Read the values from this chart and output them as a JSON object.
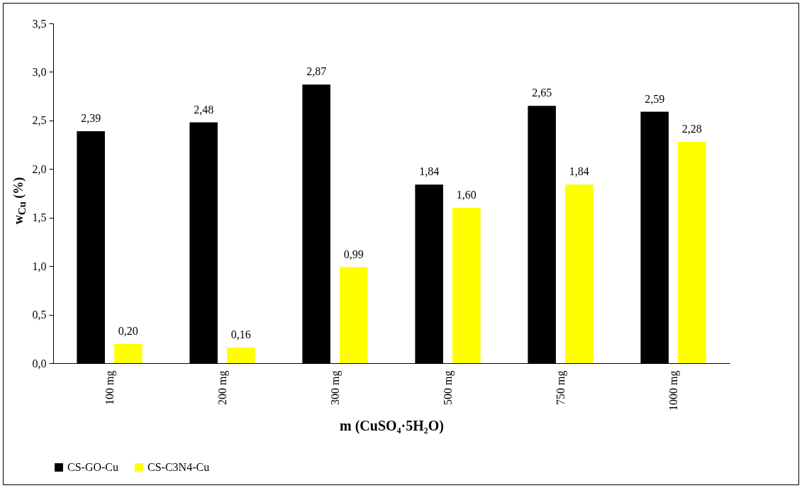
{
  "chart_data": {
    "type": "bar",
    "xlabel": "m (CuSO₄·5H₂O)",
    "ylabel": "w$_{Cu}$ (%)",
    "categories": [
      "100 mg",
      "200 mg",
      "300 mg",
      "500 mg",
      "750 mg",
      "1000 mg"
    ],
    "series": [
      {
        "name": "CS-GO-Cu",
        "color": "#000000",
        "values": [
          2.39,
          2.48,
          2.87,
          1.84,
          2.65,
          2.59
        ],
        "value_labels": [
          "2,39",
          "2,48",
          "2,87",
          "1,84",
          "2,65",
          "2,59"
        ]
      },
      {
        "name": "CS-C3N4-Cu",
        "color": "#ffff00",
        "values": [
          0.2,
          0.16,
          0.99,
          1.6,
          1.84,
          2.28
        ],
        "value_labels": [
          "0,20",
          "0,16",
          "0,99",
          "1,60",
          "1,84",
          "2,28"
        ]
      }
    ],
    "ylim": [
      0,
      3.5
    ],
    "yticks": [
      {
        "value": 0,
        "label": "0,0"
      },
      {
        "value": 0.5,
        "label": "0,5"
      },
      {
        "value": 1,
        "label": "1,0"
      },
      {
        "value": 1.5,
        "label": "1,5"
      },
      {
        "value": 2,
        "label": "2,0"
      },
      {
        "value": 2.5,
        "label": "2,5"
      },
      {
        "value": 3,
        "label": "3,0"
      },
      {
        "value": 3.5,
        "label": "3,5"
      }
    ],
    "grid": false,
    "legend": "bottom"
  }
}
